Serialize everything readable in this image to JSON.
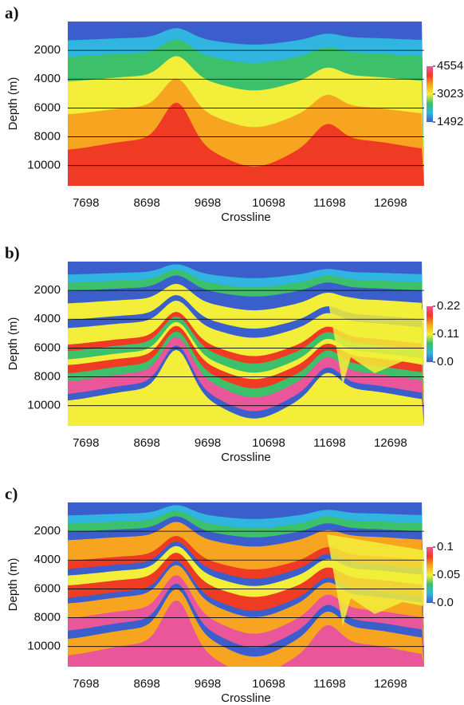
{
  "chart_data": [
    {
      "type": "heatmap",
      "panel_label": "a)",
      "xlabel": "Crossline",
      "ylabel": "Depth (m)",
      "xlim": [
        7400,
        13250
      ],
      "ylim": [
        0,
        11400
      ],
      "xticks": [
        7698,
        8698,
        9698,
        10698,
        11698,
        12698
      ],
      "yticks": [
        2000,
        4000,
        6000,
        8000,
        10000
      ],
      "clim": [
        1492,
        4554
      ],
      "cticks": [
        1492,
        3023,
        4554
      ],
      "colormap": [
        "#3a5fcd",
        "#2fb5e0",
        "#3cc06a",
        "#f2ee3a",
        "#f7a520",
        "#ef3b24",
        "#e9579a"
      ],
      "grid": true
    },
    {
      "type": "heatmap",
      "panel_label": "b)",
      "xlabel": "Crossline",
      "ylabel": "Depth (m)",
      "xlim": [
        7400,
        13250
      ],
      "ylim": [
        0,
        11400
      ],
      "xticks": [
        7698,
        8698,
        9698,
        10698,
        11698,
        12698
      ],
      "yticks": [
        2000,
        4000,
        6000,
        8000,
        10000
      ],
      "clim": [
        0,
        0.22
      ],
      "cticks": [
        {
          "value": 0,
          "label": "0.0"
        },
        0.11,
        0.22
      ],
      "colormap": [
        "#3a5fcd",
        "#2fb5e0",
        "#3cc06a",
        "#f2ee3a",
        "#f7a520",
        "#ef3b24",
        "#e9579a"
      ],
      "grid": true
    },
    {
      "type": "heatmap",
      "panel_label": "c)",
      "xlabel": "Crossline",
      "ylabel": "Depth (m)",
      "xlim": [
        7400,
        13250
      ],
      "ylim": [
        0,
        11400
      ],
      "xticks": [
        7698,
        8698,
        9698,
        10698,
        11698,
        12698
      ],
      "yticks": [
        2000,
        4000,
        6000,
        8000,
        10000
      ],
      "clim": [
        0,
        0.1
      ],
      "cticks": [
        {
          "value": 0,
          "label": "0.0"
        },
        0.05,
        0.1
      ],
      "colormap": [
        "#3a5fcd",
        "#2fb5e0",
        "#3cc06a",
        "#f2ee3a",
        "#f7a520",
        "#ef3b24",
        "#e9579a"
      ],
      "grid": true
    }
  ]
}
